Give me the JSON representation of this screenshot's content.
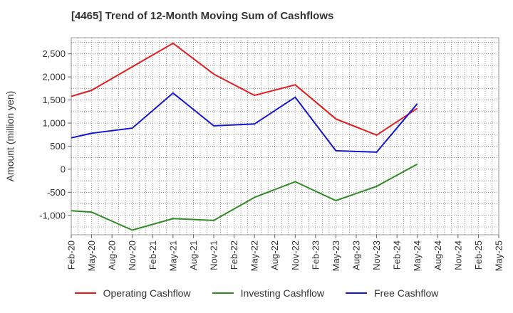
{
  "chart_data": {
    "type": "line",
    "title": "[4465]  Trend of 12-Month Moving Sum of Cashflows",
    "ylabel": "Amount (million yen)",
    "xlabel": "",
    "x": [
      "Feb-20",
      "May-20",
      "Aug-20",
      "Nov-20",
      "Feb-21",
      "May-21",
      "Aug-21",
      "Nov-21",
      "Feb-22",
      "May-22",
      "Aug-22",
      "Nov-22",
      "Feb-23",
      "May-23",
      "Aug-23",
      "Nov-23",
      "Feb-24",
      "May-24",
      "Aug-24",
      "Nov-24",
      "Feb-25",
      "May-25"
    ],
    "ylim": [
      -1420,
      2850
    ],
    "yticks": [
      -1000,
      -500,
      0,
      500,
      1000,
      1500,
      2000,
      2500
    ],
    "ytick_labels": [
      "-1,000",
      "-500",
      "0",
      "500",
      "1,000",
      "1,500",
      "2,000",
      "2,500"
    ],
    "grid": true,
    "legend_position": "bottom",
    "series": [
      {
        "name": "Operating Cashflow",
        "color": "#e41a1c",
        "values": [
          1580,
          1710,
          null,
          2220,
          null,
          2730,
          null,
          2060,
          null,
          1600,
          null,
          1830,
          null,
          1090,
          null,
          740,
          null,
          1320,
          null,
          null,
          null,
          null
        ]
      },
      {
        "name": "Investing Cashflow",
        "color": "#2e8b22",
        "values": [
          -900,
          -930,
          null,
          -1320,
          null,
          -1070,
          null,
          -1110,
          null,
          -610,
          null,
          -270,
          null,
          -680,
          null,
          -370,
          null,
          110,
          null,
          null,
          null,
          null
        ]
      },
      {
        "name": "Free Cashflow",
        "color": "#1414d4",
        "values": [
          680,
          780,
          null,
          890,
          null,
          1650,
          null,
          940,
          null,
          980,
          null,
          1560,
          null,
          400,
          null,
          370,
          null,
          1420,
          null,
          null,
          null,
          null
        ]
      }
    ]
  }
}
